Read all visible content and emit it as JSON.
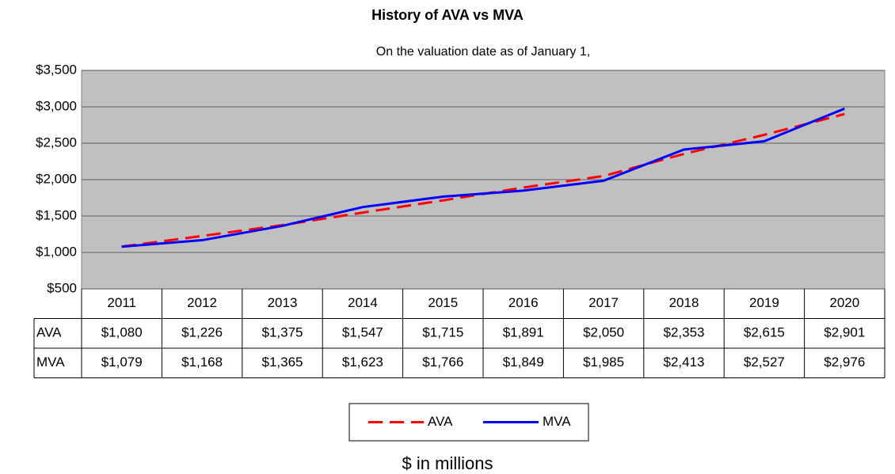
{
  "chart_data": {
    "type": "line",
    "title": "History of AVA vs MVA",
    "subtitle": "On the valuation date as of January 1,",
    "xlabel": "$ in millions",
    "categories": [
      "2011",
      "2012",
      "2013",
      "2014",
      "2015",
      "2016",
      "2017",
      "2018",
      "2019",
      "2020"
    ],
    "series": [
      {
        "name": "AVA",
        "color": "#ff0000",
        "dashed": true,
        "values": [
          1080,
          1226,
          1375,
          1547,
          1715,
          1891,
          2050,
          2353,
          2615,
          2901
        ],
        "value_labels": [
          "$1,080",
          "$1,226",
          "$1,375",
          "$1,547",
          "$1,715",
          "$1,891",
          "$2,050",
          "$2,353",
          "$2,615",
          "$2,901"
        ]
      },
      {
        "name": "MVA",
        "color": "#0000ff",
        "dashed": false,
        "values": [
          1079,
          1168,
          1365,
          1623,
          1766,
          1849,
          1985,
          2413,
          2527,
          2976
        ],
        "value_labels": [
          "$1,079",
          "$1,168",
          "$1,365",
          "$1,623",
          "$1,766",
          "$1,849",
          "$1,985",
          "$2,413",
          "$2,527",
          "$2,976"
        ]
      }
    ],
    "ylim": [
      500,
      3500
    ],
    "yticks": [
      {
        "value": 500,
        "label": "$500"
      },
      {
        "value": 1000,
        "label": "$1,000"
      },
      {
        "value": 1500,
        "label": "$1,500"
      },
      {
        "value": 2000,
        "label": "$2,000"
      },
      {
        "value": 2500,
        "label": "$2,500"
      },
      {
        "value": 3000,
        "label": "$3,000"
      },
      {
        "value": 3500,
        "label": "$3,500"
      }
    ],
    "grid": true
  }
}
